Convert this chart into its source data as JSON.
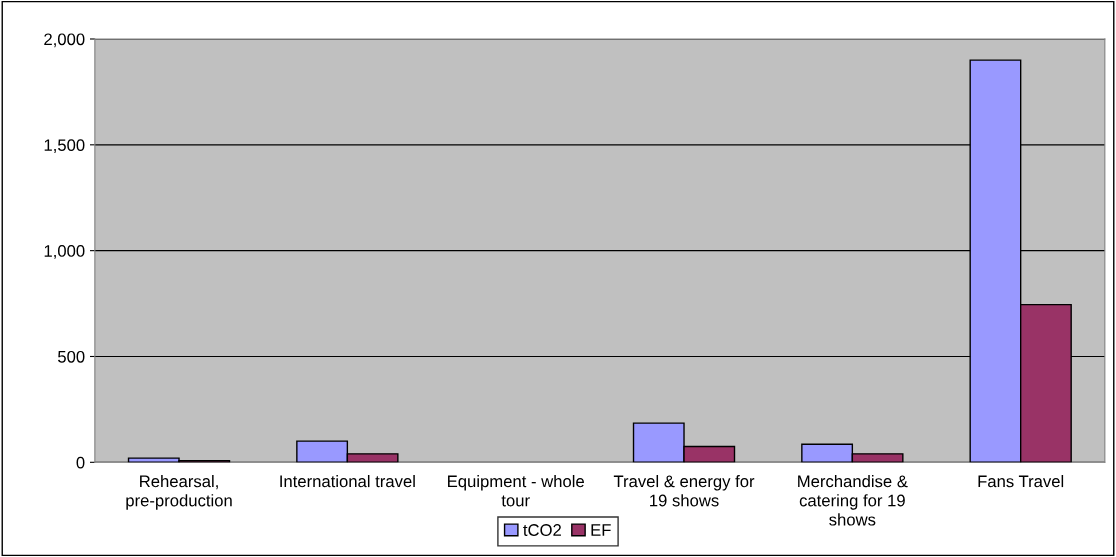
{
  "chart_data": {
    "type": "bar",
    "categories": [
      "Rehearsal, pre-production",
      "International travel",
      "Equipment - whole tour",
      "Travel & energy for 19 shows",
      "Merchandise & catering for 19 shows",
      "Fans Travel"
    ],
    "series": [
      {
        "name": "tCO2",
        "color": "#9999ff",
        "values": [
          20,
          100,
          null,
          185,
          85,
          1900
        ]
      },
      {
        "name": "EF",
        "color": "#993366",
        "values": [
          8,
          40,
          null,
          75,
          40,
          745
        ]
      }
    ],
    "ylim": [
      0,
      2000
    ],
    "yticks": [
      0,
      {
        "value": 500,
        "label": "500"
      },
      {
        "value": 1000,
        "label": "1,000"
      },
      {
        "value": 1500,
        "label": "1,500"
      },
      {
        "value": 2000,
        "label": "2,000"
      }
    ],
    "grid": "y",
    "legend": "bottom"
  }
}
